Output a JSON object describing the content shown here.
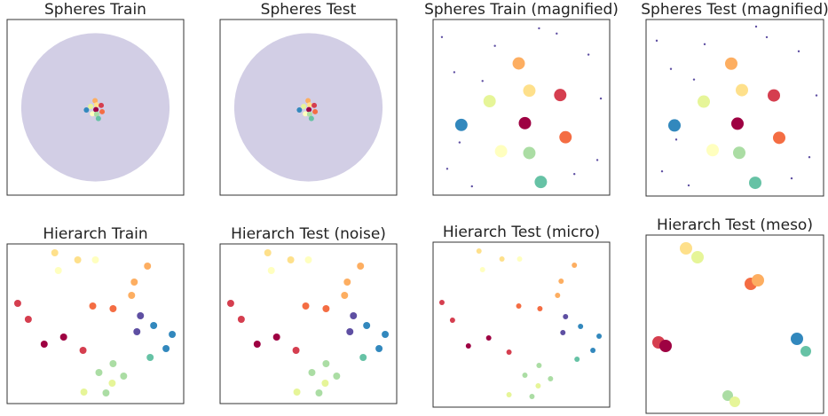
{
  "chart_data": [
    {
      "type": "scatter",
      "title": "Spheres Train",
      "xlim": [
        0,
        100
      ],
      "ylim": [
        0,
        100
      ],
      "x": [
        50,
        49.8,
        50.7,
        53.3,
        47.3,
        50.3,
        44.9,
        53.8,
        48.3,
        50.7,
        51.7
      ],
      "y": [
        50,
        53.8,
        51.4,
        51.1,
        50.5,
        48.7,
        48.5,
        47.5,
        46.3,
        46.1,
        43.6
      ],
      "sizes": [
        42,
        1.5,
        1.5,
        1.5,
        1.5,
        1.5,
        1.5,
        1.5,
        1.5,
        1.5,
        1.5
      ],
      "colors": [
        "rgba(94,79,162,0.28)",
        "#fdae61",
        "#fee08b",
        "#d53e4f",
        "#e6f598",
        "#9e0142",
        "#3288bd",
        "#f46d43",
        "#ffffbf",
        "#abdda4",
        "#66c2a5"
      ]
    },
    {
      "type": "scatter",
      "title": "Spheres Test",
      "xlim": [
        0,
        100
      ],
      "ylim": [
        0,
        100
      ],
      "x": [
        50,
        49.8,
        50.7,
        53.3,
        47.3,
        50.3,
        44.9,
        53.8,
        48.3,
        50.7,
        51.7
      ],
      "y": [
        50,
        53.8,
        51.4,
        51.1,
        50.5,
        48.7,
        48.5,
        47.5,
        46.3,
        46.1,
        43.6
      ],
      "sizes": [
        42,
        1.5,
        1.5,
        1.5,
        1.5,
        1.5,
        1.5,
        1.5,
        1.5,
        1.5,
        1.5
      ],
      "colors": [
        "rgba(94,79,162,0.28)",
        "#fdae61",
        "#fee08b",
        "#d53e4f",
        "#e6f598",
        "#9e0142",
        "#3288bd",
        "#f46d43",
        "#ffffbf",
        "#abdda4",
        "#66c2a5"
      ]
    },
    {
      "type": "scatter",
      "title": "Spheres Train (magnified)",
      "xlim": [
        0,
        100
      ],
      "ylim": [
        0,
        100
      ],
      "x": [
        5,
        12,
        22,
        35,
        70,
        88,
        93,
        8,
        28,
        80,
        95,
        60,
        15,
        48.5,
        54.5,
        72,
        32,
        52,
        16,
        75,
        38.5,
        54.5,
        61
      ],
      "y": [
        90,
        70,
        5,
        85,
        92,
        80,
        20,
        15,
        65,
        12,
        55,
        95,
        30,
        75,
        59.5,
        57,
        53.5,
        41,
        40,
        33,
        25,
        24,
        7.5
      ],
      "sizes": [
        0.6,
        0.6,
        0.6,
        0.6,
        0.6,
        0.6,
        0.6,
        0.6,
        0.6,
        0.6,
        0.6,
        0.6,
        0.6,
        3.5,
        3.5,
        3.5,
        3.5,
        3.5,
        3.5,
        3.5,
        3.5,
        3.5,
        3.5
      ],
      "colors": [
        "#5e4fa2",
        "#5e4fa2",
        "#5e4fa2",
        "#5e4fa2",
        "#5e4fa2",
        "#5e4fa2",
        "#5e4fa2",
        "#5e4fa2",
        "#5e4fa2",
        "#5e4fa2",
        "#5e4fa2",
        "#5e4fa2",
        "#5e4fa2",
        "#fdae61",
        "#fee08b",
        "#d53e4f",
        "#e6f598",
        "#9e0142",
        "#3288bd",
        "#f46d43",
        "#ffffbf",
        "#abdda4",
        "#66c2a5"
      ]
    },
    {
      "type": "scatter",
      "title": "Spheres Test (magnified)",
      "xlim": [
        0,
        100
      ],
      "ylim": [
        0,
        100
      ],
      "x": [
        6,
        14,
        24,
        33,
        68,
        86,
        92,
        9,
        27,
        82,
        96,
        62,
        17,
        48,
        54,
        72,
        32.5,
        51.5,
        16,
        75,
        37.5,
        52.5,
        61.5
      ],
      "y": [
        88,
        72,
        6,
        86,
        90,
        82,
        22,
        14,
        66,
        10,
        57,
        96,
        32,
        75,
        60,
        57,
        53.5,
        41,
        40,
        33,
        26,
        24.5,
        7.5
      ],
      "sizes": [
        0.6,
        0.6,
        0.6,
        0.6,
        0.6,
        0.6,
        0.6,
        0.6,
        0.6,
        0.6,
        0.6,
        0.6,
        0.6,
        3.5,
        3.5,
        3.5,
        3.5,
        3.5,
        3.5,
        3.5,
        3.5,
        3.5,
        3.5
      ],
      "colors": [
        "#5e4fa2",
        "#5e4fa2",
        "#5e4fa2",
        "#5e4fa2",
        "#5e4fa2",
        "#5e4fa2",
        "#5e4fa2",
        "#5e4fa2",
        "#5e4fa2",
        "#5e4fa2",
        "#5e4fa2",
        "#5e4fa2",
        "#5e4fa2",
        "#fdae61",
        "#fee08b",
        "#d53e4f",
        "#e6f598",
        "#9e0142",
        "#3288bd",
        "#f46d43",
        "#ffffbf",
        "#abdda4",
        "#66c2a5"
      ]
    },
    {
      "type": "scatter",
      "title": "Hierarch Train",
      "xlim": [
        0,
        200
      ],
      "ylim": [
        0,
        180
      ],
      "x": [
        54,
        80,
        100,
        58,
        159,
        144,
        141,
        12,
        24,
        97,
        120,
        151,
        147,
        166,
        187,
        180,
        162,
        42,
        64,
        86,
        120,
        104,
        132,
        119,
        87,
        112
      ],
      "y": [
        170,
        162,
        162,
        150,
        155,
        137,
        122,
        113,
        95,
        110,
        107,
        99,
        81,
        88,
        78,
        62,
        52,
        67,
        75,
        60,
        45,
        35,
        31,
        23,
        13,
        12
      ],
      "sizes": [
        4,
        4,
        4,
        4,
        4,
        4,
        4,
        4,
        4,
        4,
        4,
        4,
        4,
        4,
        4,
        4,
        4,
        4,
        4,
        4,
        4,
        4,
        4,
        4,
        4,
        4
      ],
      "colors": [
        "#fee08b",
        "#fee08b",
        "#ffffbf",
        "#ffffbf",
        "#fdae61",
        "#fdae61",
        "#fdae61",
        "#d53e4f",
        "#d53e4f",
        "#f46d43",
        "#f46d43",
        "#5e4fa2",
        "#5e4fa2",
        "#3288bd",
        "#3288bd",
        "#3288bd",
        "#66c2a5",
        "#9e0142",
        "#9e0142",
        "#d53e4f",
        "#abdda4",
        "#abdda4",
        "#abdda4",
        "#e6f598",
        "#e6f598",
        "#abdda4"
      ]
    },
    {
      "type": "scatter",
      "title": "Hierarch Test (noise)",
      "xlim": [
        0,
        200
      ],
      "ylim": [
        0,
        180
      ],
      "x": [
        54,
        80,
        100,
        58,
        159,
        144,
        141,
        12,
        24,
        97,
        120,
        151,
        147,
        166,
        187,
        180,
        162,
        42,
        64,
        86,
        120,
        104,
        132,
        119,
        87,
        112
      ],
      "y": [
        170,
        162,
        162,
        150,
        155,
        137,
        122,
        113,
        95,
        110,
        107,
        99,
        81,
        88,
        78,
        62,
        52,
        67,
        75,
        60,
        45,
        35,
        31,
        23,
        13,
        12
      ],
      "sizes": [
        4,
        4,
        4,
        4,
        4,
        4,
        4,
        4,
        4,
        4,
        4,
        4,
        4,
        4,
        4,
        4,
        4,
        4,
        4,
        4,
        4,
        4,
        4,
        4,
        4,
        4
      ],
      "colors": [
        "#fee08b",
        "#fee08b",
        "#ffffbf",
        "#ffffbf",
        "#fdae61",
        "#fdae61",
        "#fdae61",
        "#d53e4f",
        "#d53e4f",
        "#f46d43",
        "#f46d43",
        "#5e4fa2",
        "#5e4fa2",
        "#3288bd",
        "#3288bd",
        "#3288bd",
        "#66c2a5",
        "#9e0142",
        "#9e0142",
        "#d53e4f",
        "#abdda4",
        "#abdda4",
        "#abdda4",
        "#e6f598",
        "#e6f598",
        "#abdda4"
      ]
    },
    {
      "type": "scatter",
      "title": "Hierarch Test (micro)",
      "xlim": [
        0,
        200
      ],
      "ylim": [
        0,
        186
      ],
      "x": [
        52,
        78,
        98,
        56,
        160,
        145,
        141,
        10,
        22,
        97,
        121,
        150,
        147,
        167,
        188,
        181,
        163,
        40,
        63,
        86,
        120,
        104,
        133,
        119,
        86,
        112
      ],
      "y": [
        176,
        167,
        167,
        155,
        160,
        142,
        126,
        118,
        98,
        114,
        111,
        102,
        84,
        91,
        80,
        64,
        54,
        69,
        78,
        62,
        47,
        36,
        32,
        24,
        14,
        12
      ],
      "sizes": [
        3,
        3,
        3,
        3,
        3,
        3,
        3,
        3,
        3,
        3,
        3,
        3,
        3,
        3,
        3,
        3,
        3,
        3,
        3,
        3,
        3,
        3,
        3,
        3,
        3,
        3
      ],
      "colors": [
        "#fee08b",
        "#fee08b",
        "#ffffbf",
        "#ffffbf",
        "#fdae61",
        "#fdae61",
        "#fdae61",
        "#d53e4f",
        "#d53e4f",
        "#f46d43",
        "#f46d43",
        "#5e4fa2",
        "#5e4fa2",
        "#3288bd",
        "#3288bd",
        "#3288bd",
        "#66c2a5",
        "#9e0142",
        "#9e0142",
        "#d53e4f",
        "#abdda4",
        "#abdda4",
        "#abdda4",
        "#e6f598",
        "#e6f598",
        "#abdda4"
      ]
    },
    {
      "type": "scatter",
      "title": "Hierarch Test (meso)",
      "xlim": [
        0,
        200
      ],
      "ylim": [
        0,
        201
      ],
      "x": [
        45,
        58,
        118,
        126,
        14,
        22,
        170,
        180,
        92,
        100
      ],
      "y": [
        186,
        176,
        146,
        150,
        80,
        76,
        84,
        70,
        20,
        13
      ],
      "sizes": [
        7,
        7,
        7,
        7,
        7,
        7,
        7,
        6,
        6,
        6
      ],
      "colors": [
        "#fee08b",
        "#e6f598",
        "#f46d43",
        "#fdae61",
        "#d53e4f",
        "#9e0142",
        "#3288bd",
        "#66c2a5",
        "#abdda4",
        "#e6f598"
      ]
    }
  ]
}
